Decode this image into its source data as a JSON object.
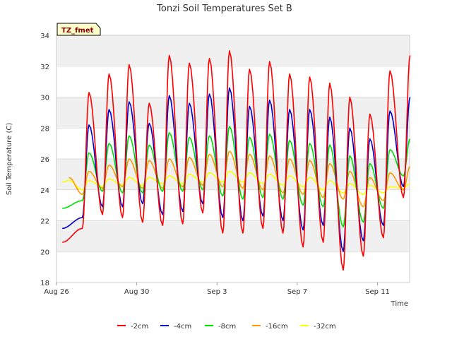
{
  "chart_data": {
    "type": "line",
    "title": "Tonzi Soil Temperatures Set B",
    "xlabel": "Time",
    "ylabel": "Soil Temperature (C)",
    "badge": "TZ_fmet",
    "xlim": [
      0,
      17.6
    ],
    "ylim": [
      18,
      34
    ],
    "yticks": [
      18,
      20,
      22,
      24,
      26,
      28,
      30,
      32,
      34
    ],
    "xticks": [
      {
        "day": 0,
        "label": "Aug 26"
      },
      {
        "day": 4,
        "label": "Aug 30"
      },
      {
        "day": 8,
        "label": "Sep 3"
      },
      {
        "day": 12,
        "label": "Sep 7"
      },
      {
        "day": 16,
        "label": "Sep 11"
      }
    ],
    "grid": true,
    "legend_position": "bottom",
    "x_units": "days since Aug 26 00:00",
    "daily_extremes_by_day": [
      0,
      1,
      2,
      3,
      4,
      5,
      6,
      7,
      8,
      9,
      10,
      11,
      12,
      13,
      14,
      15,
      16,
      17
    ],
    "series": [
      {
        "name": "-2cm",
        "color": "#ff0000",
        "daily_max": [
          null,
          30.3,
          31.5,
          32.1,
          29.6,
          32.7,
          32.2,
          32.5,
          33.0,
          31.8,
          32.3,
          31.5,
          31.3,
          30.9,
          30.0,
          28.9,
          31.7,
          32.7
        ],
        "daily_min": [
          20.6,
          21.5,
          22.4,
          22.2,
          21.9,
          21.7,
          21.8,
          22.5,
          21.2,
          21.2,
          21.5,
          21.2,
          20.3,
          20.6,
          18.8,
          19.7,
          20.9,
          23.5
        ]
      },
      {
        "name": "-4cm",
        "color": "#0000cc",
        "daily_max": [
          null,
          28.2,
          29.2,
          29.7,
          28.3,
          30.1,
          29.6,
          30.2,
          30.6,
          29.4,
          29.8,
          29.2,
          29.2,
          28.7,
          28.0,
          27.3,
          29.1,
          30.0
        ],
        "daily_min": [
          21.5,
          22.2,
          22.9,
          22.9,
          23.1,
          22.4,
          22.6,
          23.1,
          22.2,
          22.0,
          22.3,
          22.0,
          21.4,
          21.7,
          20.0,
          20.7,
          21.7,
          24.2
        ]
      },
      {
        "name": "-8cm",
        "color": "#00dd00",
        "daily_max": [
          null,
          26.4,
          27.0,
          27.5,
          26.9,
          27.7,
          27.4,
          27.5,
          28.1,
          27.4,
          27.6,
          27.2,
          27.0,
          26.9,
          26.2,
          25.7,
          26.6,
          27.3
        ],
        "daily_min": [
          22.8,
          23.3,
          23.9,
          23.8,
          23.8,
          23.9,
          23.9,
          24.0,
          23.6,
          23.4,
          23.5,
          23.4,
          23.0,
          22.9,
          21.6,
          21.9,
          22.8,
          24.9
        ]
      },
      {
        "name": "-16cm",
        "color": "#ff9900",
        "daily_max": [
          24.8,
          25.2,
          25.6,
          26.0,
          25.9,
          26.0,
          26.1,
          26.3,
          26.5,
          26.3,
          26.2,
          26.0,
          25.9,
          25.7,
          25.2,
          24.8,
          25.1,
          25.5
        ],
        "daily_min": [
          null,
          23.7,
          24.1,
          24.2,
          24.1,
          24.1,
          24.2,
          24.3,
          24.2,
          24.1,
          24.0,
          23.8,
          23.7,
          23.5,
          23.4,
          22.9,
          23.3,
          24.0
        ]
      },
      {
        "name": "-32cm",
        "color": "#ffff00",
        "daily_max": [
          24.6,
          24.6,
          24.7,
          24.8,
          24.8,
          24.9,
          25.0,
          25.1,
          25.2,
          25.1,
          25.0,
          24.9,
          24.8,
          24.6,
          24.4,
          24.3,
          24.2,
          24.4
        ],
        "daily_min": [
          24.5,
          24.0,
          24.2,
          24.3,
          24.3,
          24.4,
          24.4,
          24.5,
          24.5,
          24.5,
          24.4,
          24.3,
          24.2,
          24.0,
          23.8,
          23.7,
          23.8,
          24.1
        ]
      }
    ]
  }
}
